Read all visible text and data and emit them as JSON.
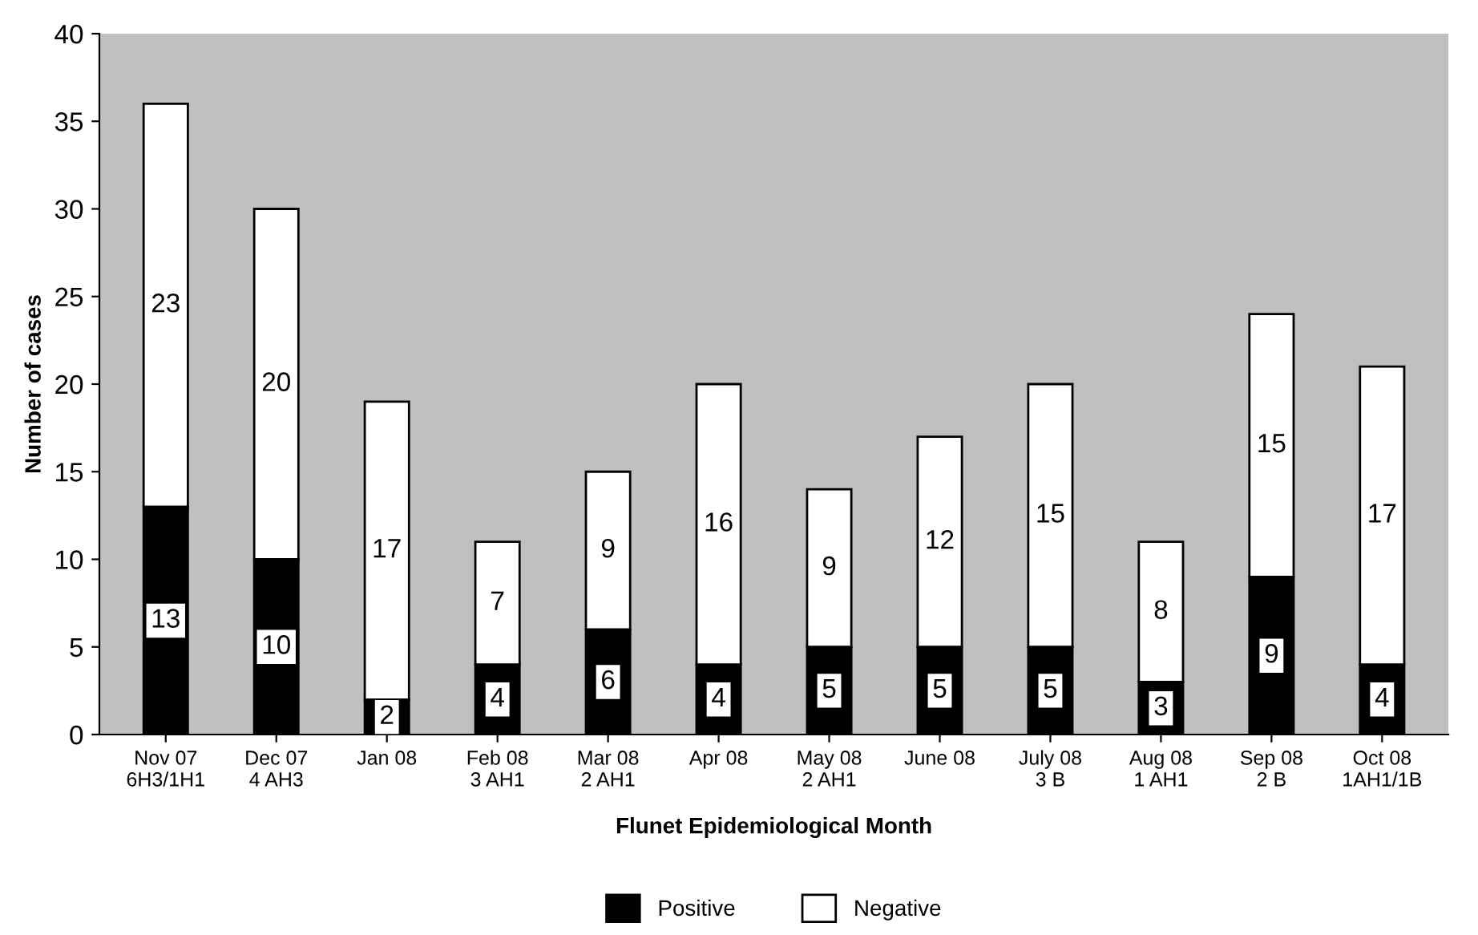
{
  "chart_data": {
    "type": "bar",
    "stacked": true,
    "xlabel": "Flunet Epidemiological Month",
    "ylabel": "Number of cases",
    "categories": [
      "Nov 07\n6H3/1H1",
      "Dec 07\n4 AH3",
      "Jan 08",
      "Feb 08\n3 AH1",
      "Mar 08\n2 AH1",
      "Apr 08",
      "May 08\n2 AH1",
      "June 08",
      "July 08\n3 B",
      "Aug 08\n1 AH1",
      "Sep 08\n2 B",
      "Oct 08\n1AH1/1B"
    ],
    "series": [
      {
        "name": "Positive",
        "color": "#000000",
        "values": [
          13,
          10,
          2,
          4,
          6,
          4,
          5,
          5,
          5,
          3,
          9,
          4
        ]
      },
      {
        "name": "Negative",
        "color": "#ffffff",
        "values": [
          23,
          20,
          17,
          7,
          9,
          16,
          9,
          12,
          15,
          8,
          15,
          17
        ]
      }
    ],
    "ylim": [
      0,
      40
    ],
    "yticks": [
      0,
      5,
      10,
      15,
      20,
      25,
      30,
      35,
      40
    ],
    "grid": false,
    "legend": "bottom",
    "data_labels": true
  }
}
